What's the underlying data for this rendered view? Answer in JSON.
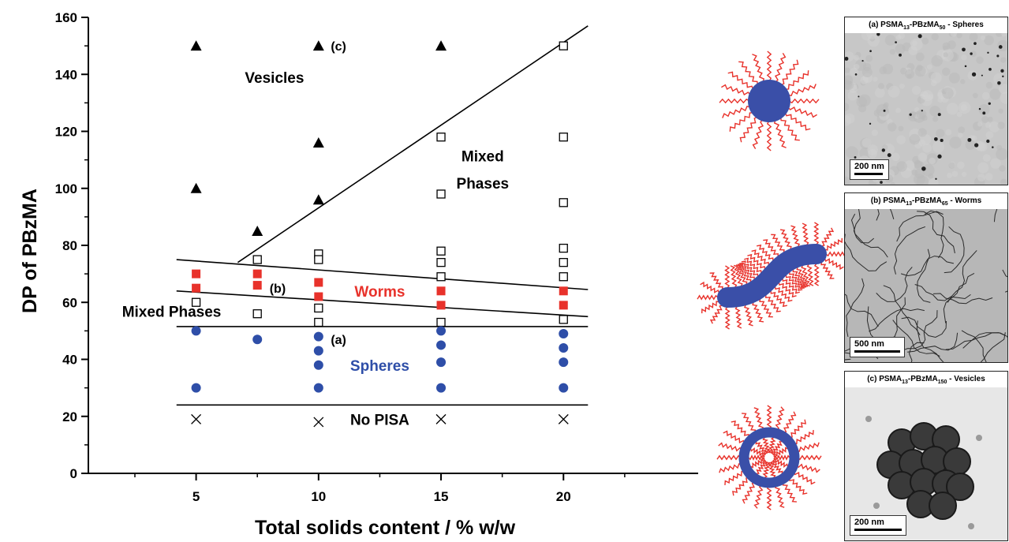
{
  "chart_data": {
    "type": "scatter",
    "xlabel": "Total solids content / % w/w",
    "ylabel": "DP of PBzMA",
    "xlim": [
      0.6,
      25.5
    ],
    "ylim": [
      0,
      160
    ],
    "xticks": [
      5,
      10,
      15,
      20
    ],
    "yticks": [
      0,
      20,
      40,
      60,
      80,
      100,
      120,
      140,
      160
    ],
    "grid": false,
    "series": [
      {
        "marker": "triangle",
        "color": "#000000",
        "points": [
          [
            5,
            150
          ],
          [
            10,
            150
          ],
          [
            15,
            150
          ],
          [
            5,
            100
          ],
          [
            10,
            116
          ],
          [
            10,
            96
          ],
          [
            7.5,
            85
          ]
        ]
      },
      {
        "marker": "open-square",
        "color": "#000000",
        "points": [
          [
            20,
            150
          ],
          [
            15,
            118
          ],
          [
            20,
            118
          ],
          [
            15,
            98
          ],
          [
            20,
            95
          ],
          [
            20,
            79
          ],
          [
            15,
            78
          ],
          [
            10,
            77
          ],
          [
            7.5,
            75
          ],
          [
            10,
            75
          ],
          [
            15,
            74
          ],
          [
            20,
            74
          ],
          [
            15,
            69
          ],
          [
            20,
            69
          ],
          [
            5,
            60
          ],
          [
            10,
            58
          ],
          [
            7.5,
            56
          ],
          [
            20,
            54
          ],
          [
            10,
            53
          ],
          [
            15,
            53
          ]
        ]
      },
      {
        "marker": "filled-square",
        "color": "#e8322b",
        "points": [
          [
            5,
            70
          ],
          [
            7.5,
            70
          ],
          [
            10,
            67
          ],
          [
            5,
            65
          ],
          [
            7.5,
            66
          ],
          [
            15,
            64
          ],
          [
            20,
            64
          ],
          [
            10,
            62
          ],
          [
            15,
            59
          ],
          [
            20,
            59
          ]
        ]
      },
      {
        "marker": "filled-circle",
        "color": "#2e4ea8",
        "points": [
          [
            5,
            50
          ],
          [
            15,
            50
          ],
          [
            7.5,
            47
          ],
          [
            10,
            48
          ],
          [
            20,
            49
          ],
          [
            15,
            45
          ],
          [
            20,
            44
          ],
          [
            10,
            43
          ],
          [
            10,
            38
          ],
          [
            15,
            39
          ],
          [
            20,
            39
          ],
          [
            5,
            30
          ],
          [
            10,
            30
          ],
          [
            15,
            30
          ],
          [
            20,
            30
          ]
        ]
      },
      {
        "marker": "cross",
        "color": "#000000",
        "points": [
          [
            5,
            19
          ],
          [
            10,
            18
          ],
          [
            15,
            19
          ],
          [
            20,
            19
          ]
        ]
      }
    ],
    "boundary_lines": [
      {
        "from": [
          6.7,
          74
        ],
        "to": [
          21,
          157
        ]
      },
      {
        "from": [
          4.2,
          75
        ],
        "to": [
          21,
          64.5
        ]
      },
      {
        "from": [
          4.2,
          64
        ],
        "to": [
          21,
          55
        ]
      },
      {
        "from": [
          4.2,
          51.5
        ],
        "to": [
          21,
          51.5
        ]
      },
      {
        "from": [
          4.2,
          24
        ],
        "to": [
          21,
          24
        ]
      }
    ],
    "region_labels": [
      {
        "text": "Vesicles",
        "at": [
          8.2,
          137
        ],
        "color": "#000000"
      },
      {
        "text": "Mixed",
        "at": [
          16.7,
          109.5
        ],
        "color": "#000000"
      },
      {
        "text": "Phases",
        "at": [
          16.7,
          100
        ],
        "color": "#000000"
      },
      {
        "text": "Worms",
        "at": [
          12.5,
          62
        ],
        "color": "#e8322b"
      },
      {
        "text": "Mixed Phases",
        "at": [
          4,
          55
        ],
        "color": "#000000"
      },
      {
        "text": "Spheres",
        "at": [
          12.5,
          36
        ],
        "color": "#2e4ea8"
      },
      {
        "text": "No PISA",
        "at": [
          12.5,
          17
        ],
        "color": "#000000"
      }
    ],
    "point_labels": [
      {
        "text": "(c)",
        "at": [
          10.5,
          150
        ]
      },
      {
        "text": "(b)",
        "at": [
          8,
          65
        ]
      },
      {
        "text": "(a)",
        "at": [
          10.5,
          47
        ]
      }
    ]
  },
  "panels": [
    {
      "id": "a",
      "title_pre": "(a) PSMA",
      "sub1": "13",
      "title_mid": "-PBzMA",
      "sub2": "50",
      "title_post": " - Spheres",
      "scale": "200 nm"
    },
    {
      "id": "b",
      "title_pre": "(b) PSMA",
      "sub1": "13",
      "title_mid": "-PBzMA",
      "sub2": "65",
      "title_post": " - Worms",
      "scale": "500 nm"
    },
    {
      "id": "c",
      "title_pre": "(c) PSMA",
      "sub1": "13",
      "title_mid": "-PBzMA",
      "sub2": "150",
      "title_post": " - Vesicles",
      "scale": "200 nm"
    }
  ],
  "colors": {
    "red": "#e8322b",
    "blue": "#2e4ea8"
  }
}
